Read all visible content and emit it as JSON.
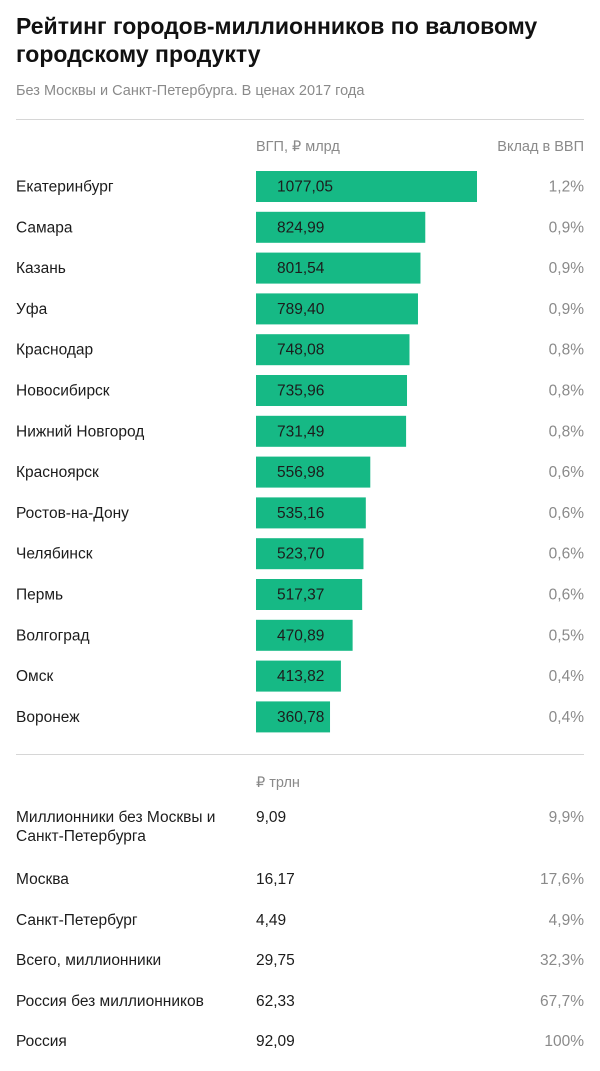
{
  "header": {
    "title": "Рейтинг городов-миллионников по валовому городскому продукту",
    "subtitle": "Без Москвы и Санкт-Петербурга. В ценах 2017 года"
  },
  "columns": {
    "value_head": "ВГП, ₽ млрд",
    "share_head": "Вклад в ВВП",
    "summary_value_head": "₽ трлн"
  },
  "colors": {
    "bar": "#16b985",
    "text": "#1c1c1c",
    "muted": "#8a8a8a",
    "divider": "#d6d6d6"
  },
  "chart_data": {
    "type": "bar",
    "orientation": "horizontal",
    "categories": [
      "Екатеринбург",
      "Самара",
      "Казань",
      "Уфа",
      "Краснодар",
      "Новосибирск",
      "Нижний Новгород",
      "Красноярск",
      "Ростов-на-Дону",
      "Челябинск",
      "Пермь",
      "Волгоград",
      "Омск",
      "Воронеж"
    ],
    "values": [
      1077.05,
      824.99,
      801.54,
      789.4,
      748.08,
      735.96,
      731.49,
      556.98,
      535.16,
      523.7,
      517.37,
      470.89,
      413.82,
      360.78
    ],
    "value_labels": [
      "1077,05",
      "824,99",
      "801,54",
      "789,40",
      "748,08",
      "735,96",
      "731,49",
      "556,98",
      "535,16",
      "523,70",
      "517,37",
      "470,89",
      "413,82",
      "360,78"
    ],
    "shares": [
      "1,2%",
      "0,9%",
      "0,9%",
      "0,9%",
      "0,8%",
      "0,8%",
      "0,8%",
      "0,6%",
      "0,6%",
      "0,6%",
      "0,6%",
      "0,5%",
      "0,4%",
      "0,4%"
    ],
    "xlim": [
      0,
      1077.05
    ]
  },
  "summary": [
    {
      "label": "Миллионники без Москвы и Санкт-Петербурга",
      "value": "9,09",
      "share": "9,9%"
    },
    {
      "label": "Москва",
      "value": "16,17",
      "share": "17,6%"
    },
    {
      "label": "Санкт-Петербург",
      "value": "4,49",
      "share": "4,9%"
    },
    {
      "label": "Всего, миллионники",
      "value": "29,75",
      "share": "32,3%"
    },
    {
      "label": "Россия без миллионников",
      "value": "62,33",
      "share": "67,7%"
    },
    {
      "label": "Россия",
      "value": "92,09",
      "share": "100%"
    }
  ]
}
